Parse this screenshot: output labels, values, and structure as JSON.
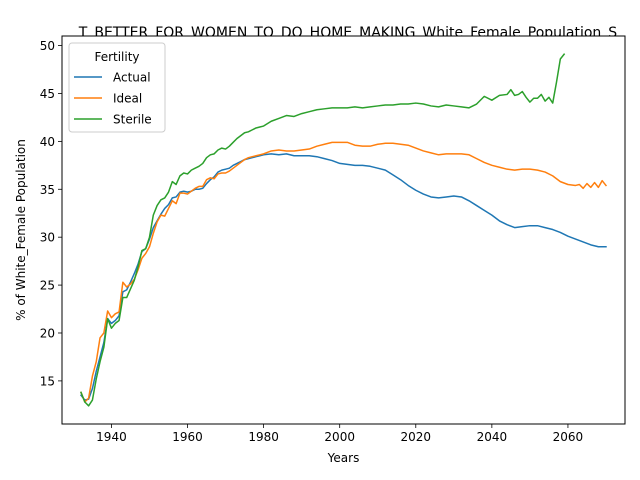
{
  "chart_data": {
    "type": "line",
    "title": "T_BETTER_FOR_WOMEN_TO_DO_HOME_MAKING_White_Female_Population_S",
    "xlabel": "Years",
    "ylabel": "% of White_Female Population",
    "xlim": [
      1927,
      2075
    ],
    "ylim": [
      10.5,
      51
    ],
    "xticks": [
      "1940",
      "1960",
      "1980",
      "2000",
      "2020",
      "2040",
      "2060"
    ],
    "yticks": [
      "15",
      "20",
      "25",
      "30",
      "35",
      "40",
      "45",
      "50"
    ],
    "grid": false,
    "legend": {
      "title": "Fertility",
      "placement": "upper-left"
    },
    "series": [
      {
        "name": "Actual",
        "color": "#1f77b4",
        "x": [
          1932,
          1933,
          1934,
          1935,
          1936,
          1937,
          1938,
          1939,
          1940,
          1941,
          1942,
          1943,
          1944,
          1945,
          1946,
          1947,
          1948,
          1949,
          1950,
          1951,
          1952,
          1953,
          1954,
          1955,
          1956,
          1957,
          1958,
          1959,
          1960,
          1961,
          1962,
          1963,
          1964,
          1965,
          1966,
          1967,
          1968,
          1969,
          1970,
          1971,
          1972,
          1973,
          1974,
          1975,
          1976,
          1977,
          1978,
          1979,
          1980,
          1982,
          1984,
          1986,
          1988,
          1990,
          1992,
          1994,
          1996,
          1998,
          2000,
          2002,
          2004,
          2006,
          2008,
          2010,
          2012,
          2014,
          2016,
          2018,
          2020,
          2022,
          2024,
          2026,
          2028,
          2030,
          2032,
          2034,
          2036,
          2038,
          2040,
          2042,
          2044,
          2046,
          2048,
          2050,
          2052,
          2054,
          2056,
          2058,
          2060,
          2062,
          2064,
          2066,
          2068,
          2070
        ],
        "y": [
          13.5,
          13.0,
          13.1,
          14.2,
          16.0,
          17.5,
          19.0,
          21.5,
          21.0,
          21.3,
          21.8,
          24.3,
          24.5,
          25.3,
          26.2,
          27.2,
          28.5,
          28.8,
          29.8,
          31.0,
          31.7,
          32.4,
          33.0,
          33.4,
          34.1,
          34.2,
          34.7,
          34.8,
          34.7,
          34.8,
          35.0,
          35.0,
          35.1,
          35.6,
          36.0,
          36.3,
          36.8,
          37.0,
          37.1,
          37.2,
          37.5,
          37.7,
          37.9,
          38.1,
          38.2,
          38.3,
          38.4,
          38.5,
          38.6,
          38.7,
          38.6,
          38.7,
          38.5,
          38.5,
          38.5,
          38.4,
          38.2,
          38.0,
          37.7,
          37.6,
          37.5,
          37.5,
          37.4,
          37.2,
          37.0,
          36.5,
          36.0,
          35.4,
          34.9,
          34.5,
          34.2,
          34.1,
          34.2,
          34.3,
          34.2,
          33.8,
          33.3,
          32.8,
          32.3,
          31.7,
          31.3,
          31.0,
          31.1,
          31.2,
          31.2,
          31.0,
          30.8,
          30.5,
          30.1,
          29.8,
          29.5,
          29.2,
          29.0,
          29.0
        ]
      },
      {
        "name": "Ideal",
        "color": "#ff7f0e",
        "x": [
          1932,
          1933,
          1934,
          1935,
          1936,
          1937,
          1938,
          1939,
          1940,
          1941,
          1942,
          1943,
          1944,
          1945,
          1946,
          1947,
          1948,
          1949,
          1950,
          1951,
          1952,
          1953,
          1954,
          1955,
          1956,
          1957,
          1958,
          1959,
          1960,
          1961,
          1962,
          1963,
          1964,
          1965,
          1966,
          1967,
          1968,
          1969,
          1970,
          1971,
          1972,
          1973,
          1974,
          1975,
          1976,
          1977,
          1978,
          1979,
          1980,
          1982,
          1984,
          1986,
          1988,
          1990,
          1992,
          1994,
          1996,
          1998,
          2000,
          2002,
          2004,
          2006,
          2008,
          2010,
          2012,
          2014,
          2016,
          2018,
          2020,
          2022,
          2024,
          2026,
          2028,
          2030,
          2032,
          2034,
          2036,
          2038,
          2040,
          2042,
          2044,
          2046,
          2048,
          2050,
          2052,
          2054,
          2056,
          2058,
          2060,
          2062,
          2063,
          2064,
          2065,
          2066,
          2067,
          2068,
          2069,
          2070
        ],
        "y": [
          13.8,
          12.8,
          13.2,
          15.5,
          17.0,
          19.5,
          20.0,
          22.3,
          21.6,
          22.0,
          22.2,
          25.3,
          24.8,
          25.1,
          25.6,
          26.6,
          27.8,
          28.3,
          29.0,
          30.4,
          31.6,
          32.3,
          32.2,
          33.0,
          33.8,
          33.5,
          34.6,
          34.6,
          34.5,
          34.8,
          35.1,
          35.3,
          35.3,
          36.0,
          36.2,
          36.1,
          36.6,
          36.7,
          36.7,
          36.9,
          37.2,
          37.5,
          37.8,
          38.1,
          38.3,
          38.4,
          38.5,
          38.6,
          38.7,
          39.0,
          39.1,
          39.0,
          39.0,
          39.1,
          39.2,
          39.5,
          39.7,
          39.9,
          39.9,
          39.9,
          39.6,
          39.5,
          39.5,
          39.7,
          39.8,
          39.8,
          39.7,
          39.6,
          39.3,
          39.0,
          38.8,
          38.6,
          38.7,
          38.7,
          38.7,
          38.6,
          38.2,
          37.8,
          37.5,
          37.3,
          37.1,
          37.0,
          37.1,
          37.1,
          37.0,
          36.8,
          36.4,
          35.8,
          35.5,
          35.4,
          35.5,
          35.1,
          35.6,
          35.2,
          35.7,
          35.2,
          35.9,
          35.4
        ]
      },
      {
        "name": "Sterile",
        "color": "#2ca02c",
        "x": [
          1932,
          1933,
          1934,
          1935,
          1936,
          1937,
          1938,
          1939,
          1940,
          1941,
          1942,
          1943,
          1944,
          1945,
          1946,
          1947,
          1948,
          1949,
          1950,
          1951,
          1952,
          1953,
          1954,
          1955,
          1956,
          1957,
          1958,
          1959,
          1960,
          1961,
          1962,
          1963,
          1964,
          1965,
          1966,
          1967,
          1968,
          1969,
          1970,
          1971,
          1972,
          1973,
          1974,
          1975,
          1976,
          1977,
          1978,
          1979,
          1980,
          1982,
          1984,
          1986,
          1988,
          1990,
          1992,
          1994,
          1996,
          1998,
          2000,
          2002,
          2004,
          2006,
          2008,
          2010,
          2012,
          2014,
          2016,
          2018,
          2020,
          2022,
          2024,
          2026,
          2028,
          2030,
          2032,
          2034,
          2036,
          2038,
          2040,
          2042,
          2044,
          2045,
          2046,
          2047,
          2048,
          2049,
          2050,
          2051,
          2052,
          2053,
          2054,
          2055,
          2056,
          2057,
          2058,
          2059
        ],
        "y": [
          13.8,
          12.8,
          12.4,
          13.0,
          15.2,
          17.0,
          18.5,
          21.5,
          20.5,
          21.0,
          21.3,
          23.7,
          23.7,
          24.6,
          25.5,
          26.9,
          28.6,
          28.8,
          30.0,
          32.3,
          33.3,
          33.9,
          34.1,
          34.7,
          35.8,
          35.5,
          36.4,
          36.7,
          36.6,
          37.0,
          37.2,
          37.4,
          37.7,
          38.3,
          38.6,
          38.7,
          39.1,
          39.3,
          39.2,
          39.5,
          39.9,
          40.3,
          40.6,
          40.9,
          41.0,
          41.2,
          41.4,
          41.5,
          41.6,
          42.1,
          42.4,
          42.7,
          42.6,
          42.9,
          43.1,
          43.3,
          43.4,
          43.5,
          43.5,
          43.5,
          43.6,
          43.5,
          43.6,
          43.7,
          43.8,
          43.8,
          43.9,
          43.9,
          44.0,
          43.9,
          43.7,
          43.6,
          43.8,
          43.7,
          43.6,
          43.5,
          43.9,
          44.7,
          44.3,
          44.8,
          44.9,
          45.4,
          44.8,
          44.9,
          45.2,
          44.6,
          44.1,
          44.5,
          44.5,
          44.9,
          44.2,
          44.6,
          44.0,
          46.2,
          48.6,
          49.1
        ]
      }
    ]
  }
}
